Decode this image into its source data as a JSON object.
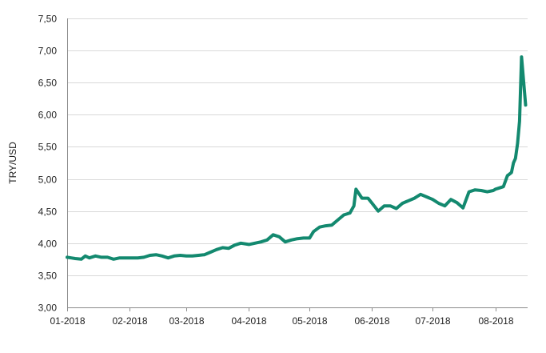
{
  "chart_data": {
    "type": "line",
    "title": "",
    "xlabel": "",
    "ylabel": "TRY/USD",
    "ylim": [
      3.0,
      7.5
    ],
    "xlim": [
      "2018-01-01",
      "2018-08-17"
    ],
    "grid": true,
    "line_color": "#13896f",
    "y_ticks": [
      3.0,
      3.5,
      4.0,
      4.5,
      5.0,
      5.5,
      6.0,
      6.5,
      7.0,
      7.5
    ],
    "y_tick_labels": [
      "3,00",
      "3,50",
      "4,00",
      "4,50",
      "5,00",
      "5,50",
      "6,00",
      "6,50",
      "7,00",
      "7,50"
    ],
    "x_ticks": [
      "2018-01-01",
      "2018-02-01",
      "2018-03-01",
      "2018-04-01",
      "2018-05-01",
      "2018-06-01",
      "2018-07-01",
      "2018-08-01"
    ],
    "x_tick_labels": [
      "01-2018",
      "02-2018",
      "03-2018",
      "04-2018",
      "05-2018",
      "06-2018",
      "07-2018",
      "08-2018"
    ],
    "series": [
      {
        "x": [
          "2018-01-01",
          "2018-01-03",
          "2018-01-05",
          "2018-01-08",
          "2018-01-10",
          "2018-01-12",
          "2018-01-15",
          "2018-01-18",
          "2018-01-21",
          "2018-01-24",
          "2018-01-27",
          "2018-01-30",
          "2018-02-02",
          "2018-02-05",
          "2018-02-08",
          "2018-02-11",
          "2018-02-14",
          "2018-02-17",
          "2018-02-20",
          "2018-02-23",
          "2018-02-26",
          "2018-03-01",
          "2018-03-04",
          "2018-03-07",
          "2018-03-10",
          "2018-03-13",
          "2018-03-16",
          "2018-03-19",
          "2018-03-22",
          "2018-03-25",
          "2018-03-28",
          "2018-04-01",
          "2018-04-04",
          "2018-04-07",
          "2018-04-10",
          "2018-04-13",
          "2018-04-16",
          "2018-04-19",
          "2018-04-22",
          "2018-04-25",
          "2018-04-28",
          "2018-05-01",
          "2018-05-03",
          "2018-05-06",
          "2018-05-09",
          "2018-05-12",
          "2018-05-15",
          "2018-05-18",
          "2018-05-21",
          "2018-05-23",
          "2018-05-24",
          "2018-05-27",
          "2018-05-30",
          "2018-06-01",
          "2018-06-04",
          "2018-06-07",
          "2018-06-10",
          "2018-06-13",
          "2018-06-16",
          "2018-06-19",
          "2018-06-22",
          "2018-06-25",
          "2018-06-28",
          "2018-07-01",
          "2018-07-04",
          "2018-07-07",
          "2018-07-10",
          "2018-07-13",
          "2018-07-16",
          "2018-07-19",
          "2018-07-22",
          "2018-07-25",
          "2018-07-28",
          "2018-07-31",
          "2018-08-01",
          "2018-08-03",
          "2018-08-05",
          "2018-08-07",
          "2018-08-09",
          "2018-08-10",
          "2018-08-11",
          "2018-08-12",
          "2018-08-13",
          "2018-08-14",
          "2018-08-16"
        ],
        "values": [
          3.78,
          3.77,
          3.76,
          3.75,
          3.8,
          3.77,
          3.8,
          3.78,
          3.78,
          3.75,
          3.77,
          3.77,
          3.77,
          3.77,
          3.78,
          3.81,
          3.82,
          3.8,
          3.77,
          3.8,
          3.81,
          3.8,
          3.8,
          3.81,
          3.82,
          3.86,
          3.9,
          3.93,
          3.92,
          3.97,
          4.0,
          3.98,
          4.0,
          4.02,
          4.05,
          4.13,
          4.1,
          4.02,
          4.05,
          4.07,
          4.08,
          4.08,
          4.18,
          4.25,
          4.27,
          4.28,
          4.36,
          4.44,
          4.47,
          4.58,
          4.84,
          4.7,
          4.7,
          4.62,
          4.5,
          4.58,
          4.58,
          4.54,
          4.62,
          4.66,
          4.7,
          4.76,
          4.72,
          4.68,
          4.62,
          4.58,
          4.68,
          4.63,
          4.55,
          4.8,
          4.83,
          4.82,
          4.8,
          4.82,
          4.84,
          4.86,
          4.88,
          5.05,
          5.1,
          5.25,
          5.32,
          5.55,
          5.9,
          6.9,
          6.15
        ]
      }
    ]
  }
}
